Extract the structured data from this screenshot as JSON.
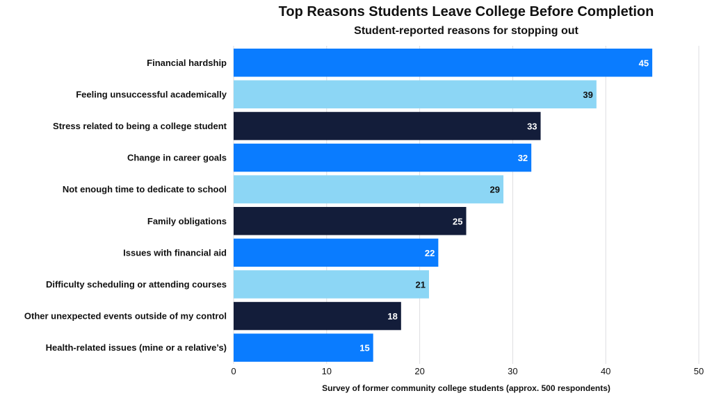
{
  "chart_data": {
    "type": "bar",
    "orientation": "horizontal",
    "title": "Top Reasons Students Leave College Before Completion",
    "subtitle": "Student-reported reasons for stopping out",
    "xlabel": "Survey of former community college students (approx. 500 respondents)",
    "ylabel": "",
    "xlim": [
      0,
      50
    ],
    "xticks": [
      0,
      10,
      20,
      30,
      40,
      50
    ],
    "grid": true,
    "categories": [
      "Financial hardship",
      "Feeling unsuccessful academically",
      "Stress related to being a college student",
      "Change in career goals",
      "Not enough time to dedicate to school",
      "Family obligations",
      "Issues with financial aid",
      "Difficulty scheduling or attending courses",
      "Other unexpected events outside of my control",
      "Health-related issues (mine or a relative’s)"
    ],
    "values": [
      45,
      39,
      33,
      32,
      29,
      25,
      22,
      21,
      18,
      15
    ],
    "colors": [
      "#0a7cff",
      "#8cd6f5",
      "#131d3a",
      "#0a7cff",
      "#8cd6f5",
      "#131d3a",
      "#0a7cff",
      "#8cd6f5",
      "#131d3a",
      "#0a7cff"
    ],
    "label_colors": [
      "#ffffff",
      "#111111",
      "#ffffff",
      "#ffffff",
      "#111111",
      "#ffffff",
      "#ffffff",
      "#111111",
      "#ffffff",
      "#ffffff"
    ]
  }
}
